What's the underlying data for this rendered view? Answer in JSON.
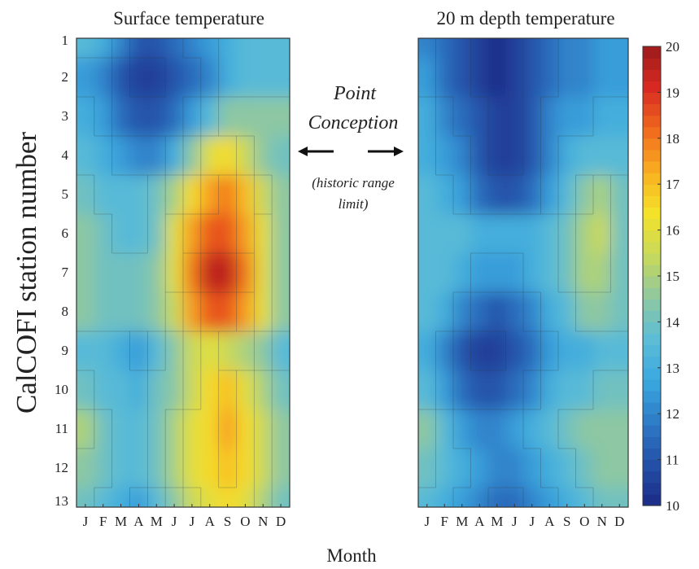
{
  "chart_data": [
    {
      "type": "heatmap",
      "title": "Surface temperature",
      "xlabel": "Month",
      "ylabel": "CalCOFI station number",
      "x": [
        "J",
        "F",
        "M",
        "A",
        "M",
        "J",
        "J",
        "A",
        "S",
        "O",
        "N",
        "D"
      ],
      "y": [
        1,
        2,
        3,
        4,
        5,
        6,
        7,
        8,
        9,
        10,
        11,
        12,
        13
      ],
      "values": [
        [
          13.5,
          13.0,
          12.0,
          11.0,
          11.0,
          11.5,
          12.0,
          12.5,
          13.0,
          13.5,
          13.5,
          13.5
        ],
        [
          12.5,
          12.0,
          11.0,
          10.5,
          10.5,
          11.0,
          11.5,
          12.0,
          13.0,
          13.5,
          13.5,
          13.5
        ],
        [
          13.0,
          12.5,
          11.5,
          11.0,
          11.0,
          11.5,
          12.5,
          13.5,
          14.5,
          14.5,
          14.5,
          14.5
        ],
        [
          13.5,
          13.0,
          12.5,
          12.0,
          12.0,
          13.0,
          14.5,
          16.0,
          16.5,
          15.5,
          14.5,
          14.0
        ],
        [
          14.0,
          13.5,
          13.5,
          13.5,
          14.0,
          15.0,
          16.5,
          17.5,
          18.0,
          17.0,
          15.5,
          14.5
        ],
        [
          14.5,
          14.0,
          13.5,
          13.5,
          14.0,
          16.0,
          17.5,
          18.5,
          18.5,
          17.5,
          16.0,
          14.5
        ],
        [
          14.5,
          14.0,
          14.0,
          14.0,
          14.5,
          16.0,
          18.0,
          19.5,
          19.5,
          18.0,
          16.0,
          14.5
        ],
        [
          14.5,
          14.0,
          14.0,
          14.0,
          14.5,
          15.5,
          17.5,
          18.5,
          18.5,
          17.5,
          16.0,
          14.5
        ],
        [
          13.5,
          13.5,
          13.0,
          12.5,
          13.5,
          14.5,
          15.5,
          16.0,
          15.5,
          15.0,
          14.5,
          13.5
        ],
        [
          14.0,
          13.5,
          13.5,
          13.0,
          14.0,
          14.5,
          15.5,
          16.5,
          17.0,
          16.0,
          15.0,
          14.0
        ],
        [
          15.0,
          14.0,
          13.5,
          13.5,
          14.0,
          15.0,
          16.0,
          16.5,
          17.5,
          16.5,
          15.5,
          14.5
        ],
        [
          14.5,
          14.0,
          13.5,
          13.5,
          14.0,
          15.0,
          16.0,
          16.5,
          17.0,
          16.5,
          15.5,
          14.5
        ],
        [
          14.0,
          13.5,
          13.0,
          12.5,
          13.5,
          14.5,
          15.5,
          16.0,
          16.5,
          16.0,
          15.0,
          14.0
        ]
      ]
    },
    {
      "type": "heatmap",
      "title": "20 m depth temperature",
      "xlabel": "Month",
      "ylabel": "CalCOFI station number",
      "x": [
        "J",
        "F",
        "M",
        "A",
        "M",
        "J",
        "J",
        "A",
        "S",
        "O",
        "N",
        "D"
      ],
      "y": [
        1,
        2,
        3,
        4,
        5,
        6,
        7,
        8,
        9,
        10,
        11,
        12,
        13
      ],
      "values": [
        [
          12.0,
          11.5,
          11.0,
          10.5,
          10.0,
          10.5,
          11.0,
          11.5,
          12.0,
          12.0,
          12.5,
          12.5
        ],
        [
          12.5,
          11.5,
          11.0,
          10.5,
          10.0,
          10.5,
          11.0,
          11.5,
          12.0,
          12.0,
          12.5,
          12.5
        ],
        [
          13.0,
          12.0,
          11.5,
          11.0,
          10.5,
          10.5,
          11.0,
          12.0,
          12.5,
          12.5,
          13.0,
          13.0
        ],
        [
          13.0,
          12.5,
          12.0,
          11.0,
          10.5,
          10.5,
          11.0,
          12.0,
          13.0,
          13.5,
          13.5,
          13.5
        ],
        [
          13.5,
          13.0,
          12.5,
          11.5,
          11.0,
          11.0,
          11.5,
          12.5,
          13.5,
          14.5,
          15.0,
          14.0
        ],
        [
          13.5,
          13.5,
          13.5,
          13.0,
          13.0,
          13.0,
          13.0,
          13.5,
          14.0,
          15.0,
          15.5,
          14.0
        ],
        [
          13.5,
          13.5,
          13.0,
          12.5,
          12.5,
          12.5,
          13.0,
          13.5,
          14.0,
          15.0,
          15.0,
          14.0
        ],
        [
          13.5,
          13.0,
          12.0,
          11.5,
          11.0,
          11.5,
          12.0,
          13.0,
          13.5,
          14.5,
          14.5,
          14.0
        ],
        [
          13.0,
          12.0,
          11.0,
          10.5,
          10.5,
          11.0,
          11.5,
          12.5,
          13.0,
          13.0,
          13.5,
          13.5
        ],
        [
          13.5,
          12.5,
          11.5,
          11.0,
          11.0,
          11.5,
          12.0,
          13.0,
          13.5,
          13.5,
          14.0,
          14.0
        ],
        [
          14.5,
          13.5,
          12.5,
          12.0,
          12.0,
          12.5,
          13.0,
          13.5,
          14.0,
          14.5,
          14.5,
          14.5
        ],
        [
          14.0,
          13.5,
          13.0,
          12.5,
          12.0,
          12.0,
          12.5,
          13.0,
          13.5,
          14.0,
          14.5,
          14.5
        ],
        [
          13.5,
          13.0,
          12.5,
          12.0,
          11.5,
          11.5,
          12.0,
          12.5,
          13.0,
          13.5,
          14.0,
          14.0
        ]
      ]
    }
  ],
  "colorbar": {
    "min": 10,
    "max": 20,
    "ticks": [
      10,
      11,
      12,
      13,
      14,
      15,
      16,
      17,
      18,
      19,
      20
    ],
    "colors": [
      "#1b2a86",
      "#2450a8",
      "#2e7bc6",
      "#3aa8df",
      "#5dbdd6",
      "#8fc8a0",
      "#c8d95a",
      "#f4e22a",
      "#f8b020",
      "#f06a1e",
      "#d92a22",
      "#9c1a1a"
    ]
  },
  "annotation": {
    "line1": "Point",
    "line2": "Conception",
    "range_line1": "(historic range",
    "range_line2": "limit)",
    "left_arrow_icon": "arrow-left-icon",
    "right_arrow_icon": "arrow-right-icon"
  }
}
